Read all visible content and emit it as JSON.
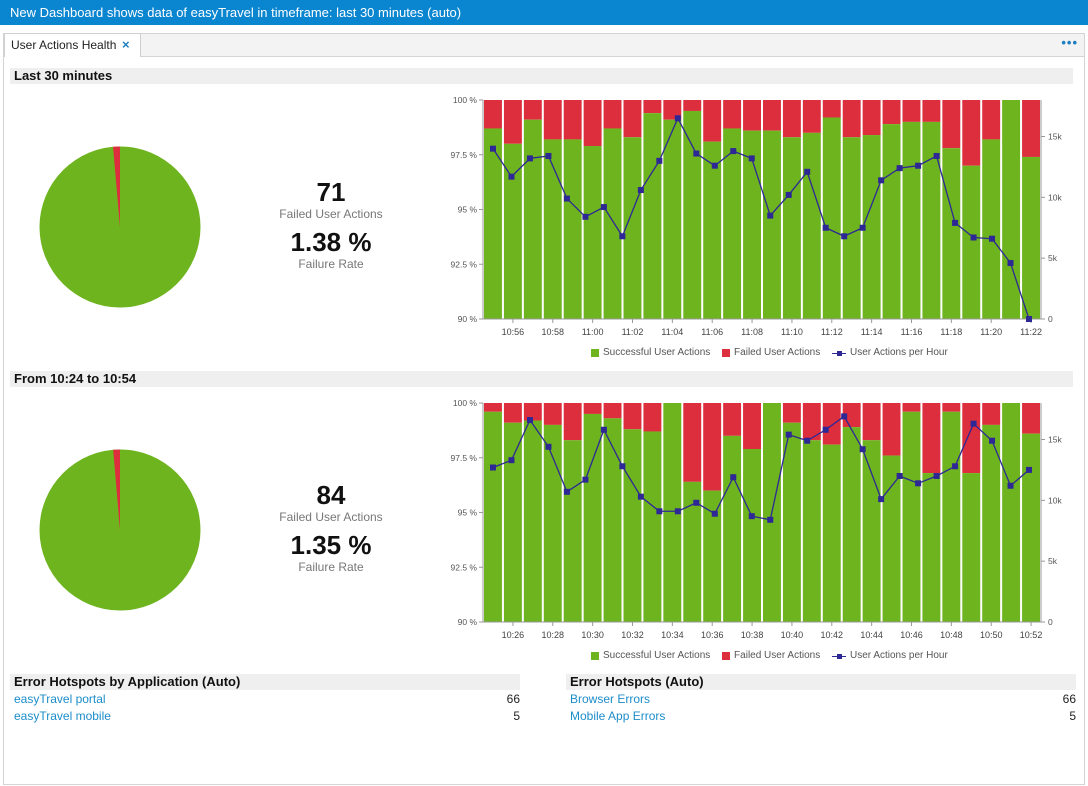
{
  "window": {
    "title": "New Dashboard shows data of easyTravel in timeframe: last 30 minutes (auto)"
  },
  "tabs": [
    {
      "label": "User Actions Health",
      "close_icon": "×"
    }
  ],
  "more_icon": "•••",
  "colors": {
    "success": "#6eb41e",
    "failed": "#dc2e3d",
    "line": "#2d2895",
    "link": "#1c8dc9",
    "titlebar": "#0a85cf"
  },
  "sections": [
    {
      "title": "Last 30 minutes",
      "failed_count": "71",
      "failed_label": "Failed User Actions",
      "failure_rate": "1.38 %",
      "failure_rate_label": "Failure Rate",
      "pie_failure_fraction": 0.0138
    },
    {
      "title": "From 10:24 to 10:54",
      "failed_count": "84",
      "failed_label": "Failed User Actions",
      "failure_rate": "1.35 %",
      "failure_rate_label": "Failure Rate",
      "pie_failure_fraction": 0.0135
    }
  ],
  "chart_data": [
    {
      "type": "bar",
      "title": "",
      "stacked_percent": true,
      "ylim": [
        90,
        100
      ],
      "y_ticks": [
        "90 %",
        "92.5 %",
        "95 %",
        "97.5 %",
        "100 %"
      ],
      "y2lim": [
        0,
        18000
      ],
      "y2_ticks": [
        "0",
        "5k",
        "10k",
        "15k"
      ],
      "x_labels": [
        "10:56",
        "10:58",
        "11:00",
        "11:02",
        "11:04",
        "11:06",
        "11:08",
        "11:10",
        "11:12",
        "11:14",
        "11:16",
        "11:18",
        "11:20",
        "11:22"
      ],
      "series": [
        {
          "name": "Successful User Actions",
          "type": "bar",
          "values": [
            98.7,
            98.0,
            99.1,
            98.2,
            98.2,
            97.9,
            98.7,
            98.3,
            99.4,
            99.1,
            99.5,
            98.1,
            98.7,
            98.6,
            98.6,
            98.3,
            98.5,
            99.2,
            98.3,
            98.4,
            98.9,
            99.0,
            99.0,
            97.8,
            97.0,
            98.2,
            100.0,
            97.4
          ]
        },
        {
          "name": "Failed User Actions",
          "type": "bar"
        },
        {
          "name": "User Actions per Hour",
          "type": "line",
          "values": [
            14000,
            11700,
            13200,
            13400,
            9900,
            8400,
            9200,
            6800,
            10600,
            13000,
            16500,
            13600,
            12600,
            13800,
            13200,
            8500,
            10200,
            12100,
            7500,
            6800,
            7500,
            11400,
            12400,
            12600,
            13400,
            7900,
            6700,
            6600,
            4600,
            0
          ]
        }
      ]
    },
    {
      "type": "bar",
      "title": "",
      "stacked_percent": true,
      "ylim": [
        90,
        100
      ],
      "y_ticks": [
        "90 %",
        "92.5 %",
        "95 %",
        "97.5 %",
        "100 %"
      ],
      "y2lim": [
        0,
        18000
      ],
      "y2_ticks": [
        "0",
        "5k",
        "10k",
        "15k"
      ],
      "x_labels": [
        "10:26",
        "10:28",
        "10:30",
        "10:32",
        "10:34",
        "10:36",
        "10:38",
        "10:40",
        "10:42",
        "10:44",
        "10:46",
        "10:48",
        "10:50",
        "10:52"
      ],
      "series": [
        {
          "name": "Successful User Actions",
          "type": "bar",
          "values": [
            99.6,
            99.1,
            99.2,
            99.0,
            98.3,
            99.5,
            99.3,
            98.8,
            98.7,
            100.0,
            96.4,
            96.0,
            98.5,
            97.9,
            100.0,
            99.1,
            98.3,
            98.1,
            98.9,
            98.3,
            97.6,
            99.6,
            96.8,
            99.6,
            96.8,
            99.0,
            100.0,
            98.6
          ]
        },
        {
          "name": "Failed User Actions",
          "type": "bar"
        },
        {
          "name": "User Actions per Hour",
          "type": "line",
          "values": [
            12700,
            13300,
            16600,
            14400,
            10700,
            11700,
            15800,
            12800,
            10300,
            9100,
            9100,
            9800,
            8900,
            11900,
            8700,
            8400,
            15400,
            14900,
            15800,
            16900,
            14200,
            10100,
            12000,
            11400,
            12000,
            12800,
            16300,
            14900,
            11200,
            12500
          ]
        }
      ]
    }
  ],
  "legend": {
    "success": "Successful User Actions",
    "failed": "Failed User Actions",
    "line": "User Actions per Hour"
  },
  "hotspots": [
    {
      "title": "Error Hotspots by Application (Auto)",
      "rows": [
        {
          "name": "easyTravel portal",
          "value": "66"
        },
        {
          "name": "easyTravel mobile",
          "value": "5"
        }
      ]
    },
    {
      "title": "Error Hotspots (Auto)",
      "rows": [
        {
          "name": "Browser Errors",
          "value": "66"
        },
        {
          "name": "Mobile App Errors",
          "value": "5"
        }
      ]
    }
  ]
}
